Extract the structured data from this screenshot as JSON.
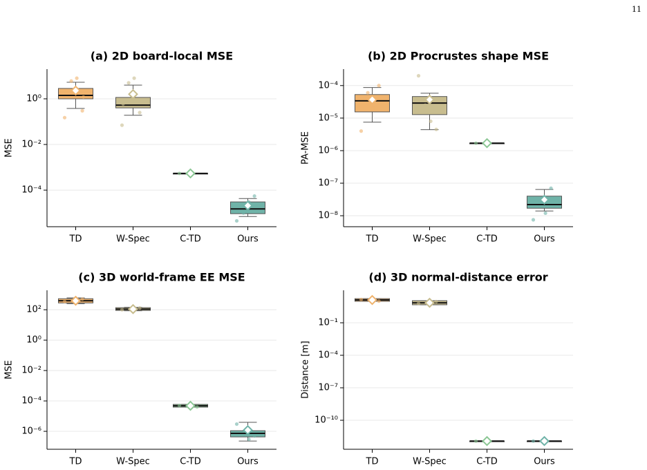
{
  "page_number": "11",
  "chart_data": [
    {
      "type": "box",
      "title": "(a) 2D board-local MSE",
      "ylabel": "MSE",
      "log": true,
      "grid": true,
      "categories": [
        "TD",
        "W-Spec",
        "C-TD",
        "Ours"
      ],
      "colors": [
        "#f0b36d",
        "#c8bd8f",
        "#8cc795",
        "#6fb3a8"
      ],
      "ylim": [
        2.5e-06,
        20
      ],
      "yticks": [
        {
          "value": 1,
          "label": "10⁰"
        },
        {
          "value": 0.01,
          "label": "10⁻²"
        },
        {
          "value": 0.0001,
          "label": "10⁻⁴"
        }
      ],
      "boxes": [
        {
          "low": 0.38,
          "q1": 1.0,
          "median": 1.42,
          "q3": 2.85,
          "high": 5.3,
          "mean": 2.3,
          "points": [
            0.15,
            0.3,
            8,
            6,
            2,
            1.2
          ]
        },
        {
          "low": 0.19,
          "q1": 0.4,
          "median": 0.53,
          "q3": 1.15,
          "high": 4.0,
          "mean": 1.6,
          "points": [
            0.07,
            0.25,
            8,
            5,
            0.6
          ]
        },
        {
          "low": 0.00054,
          "q1": 0.00054,
          "median": 0.00054,
          "q3": 0.00054,
          "high": 0.00054,
          "mean": 0.00054,
          "points": [
            0.00054
          ]
        },
        {
          "low": 7e-06,
          "q1": 9.3e-06,
          "median": 1.5e-05,
          "q3": 3.05e-05,
          "high": 4.3e-05,
          "mean": 2.1e-05,
          "points": [
            4.5e-06,
            5.5e-05,
            3e-05,
            1e-05
          ]
        }
      ]
    },
    {
      "type": "box",
      "title": "(b) 2D Procrustes shape MSE",
      "ylabel": "PA-MSE",
      "log": true,
      "grid": true,
      "categories": [
        "TD",
        "W-Spec",
        "C-TD",
        "Ours"
      ],
      "colors": [
        "#f0b36d",
        "#c8bd8f",
        "#8cc795",
        "#6fb3a8"
      ],
      "ylim": [
        4.6e-09,
        0.00032
      ],
      "yticks": [
        {
          "value": 0.0001,
          "label": "10⁻⁴"
        },
        {
          "value": 1e-05,
          "label": "10⁻⁵"
        },
        {
          "value": 1e-06,
          "label": "10⁻⁶"
        },
        {
          "value": 1e-07,
          "label": "10⁻⁷"
        },
        {
          "value": 1e-08,
          "label": "10⁻⁸"
        }
      ],
      "boxes": [
        {
          "low": 7.5e-06,
          "q1": 1.55e-05,
          "median": 3.4e-05,
          "q3": 5.3e-05,
          "high": 8.7e-05,
          "mean": 3.7e-05,
          "points": [
            4e-06,
            0.0001,
            2e-05,
            6e-05
          ]
        },
        {
          "low": 4.4e-06,
          "q1": 1.28e-05,
          "median": 2.9e-05,
          "q3": 4.6e-05,
          "high": 5.8e-05,
          "mean": 3.7e-05,
          "points": [
            0.0002,
            4.5e-06,
            8e-06,
            2.5e-05
          ]
        },
        {
          "low": 1.7e-06,
          "q1": 1.7e-06,
          "median": 1.7e-06,
          "q3": 1.7e-06,
          "high": 1.7e-06,
          "mean": 1.7e-06,
          "points": [
            1.7e-06
          ]
        },
        {
          "low": 1.4e-08,
          "q1": 1.7e-08,
          "median": 2.2e-08,
          "q3": 4e-08,
          "high": 6.4e-08,
          "mean": 3.1e-08,
          "points": [
            7.5e-09,
            7e-08,
            1.2e-08
          ]
        }
      ]
    },
    {
      "type": "box",
      "title": "(c) 3D world-frame EE MSE",
      "ylabel": "MSE",
      "log": true,
      "grid": true,
      "categories": [
        "TD",
        "W-Spec",
        "C-TD",
        "Ours"
      ],
      "colors": [
        "#f0b36d",
        "#c8bd8f",
        "#8cc795",
        "#6fb3a8"
      ],
      "ylim": [
        6.6e-08,
        1900
      ],
      "yticks": [
        {
          "value": 100,
          "label": "10²"
        },
        {
          "value": 1,
          "label": "10⁰"
        },
        {
          "value": 0.01,
          "label": "10⁻²"
        },
        {
          "value": 0.0001,
          "label": "10⁻⁴"
        },
        {
          "value": 1e-06,
          "label": "10⁻⁶"
        }
      ],
      "boxes": [
        {
          "low": 250,
          "q1": 280,
          "median": 390,
          "q3": 530,
          "high": 600,
          "mean": 390,
          "points": [
            350,
            500
          ]
        },
        {
          "low": 85,
          "q1": 90,
          "median": 110,
          "q3": 137,
          "high": 145,
          "mean": 110,
          "points": [
            100,
            130
          ]
        },
        {
          "low": 3.9e-05,
          "q1": 3.9e-05,
          "median": 4.8e-05,
          "q3": 5.9e-05,
          "high": 5.9e-05,
          "mean": 4.8e-05,
          "points": [
            5e-05,
            4e-05
          ]
        },
        {
          "low": 2.3e-07,
          "q1": 4.3e-07,
          "median": 7.3e-07,
          "q3": 1.1e-06,
          "high": 3.9e-06,
          "mean": 1.2e-06,
          "points": [
            3e-06,
            5e-07,
            3e-07
          ]
        }
      ]
    },
    {
      "type": "box",
      "title": "(d) 3D normal-distance error",
      "ylabel": "Distance [m]",
      "log": true,
      "grid": true,
      "categories": [
        "TD",
        "W-Spec",
        "C-TD",
        "Ours"
      ],
      "colors": [
        "#f0b36d",
        "#c8bd8f",
        "#8cc795",
        "#6fb3a8"
      ],
      "ylim": [
        2.1e-13,
        100
      ],
      "yticks": [
        {
          "value": 0.1,
          "label": "10⁻¹"
        },
        {
          "value": 0.0001,
          "label": "10⁻⁴"
        },
        {
          "value": 1e-07,
          "label": "10⁻⁷"
        },
        {
          "value": 1e-10,
          "label": "10⁻¹⁰"
        }
      ],
      "boxes": [
        {
          "low": 9.6,
          "q1": 9.6,
          "median": 12.7,
          "q3": 17,
          "high": 17,
          "mean": 12.7,
          "points": [
            14,
            10
          ]
        },
        {
          "low": 4.6,
          "q1": 4.6,
          "median": 7,
          "q3": 11,
          "high": 11,
          "mean": 7,
          "points": [
            6,
            9
          ]
        },
        {
          "low": 1.2e-12,
          "q1": 1.2e-12,
          "median": 1.2e-12,
          "q3": 1.2e-12,
          "high": 1.2e-12,
          "mean": 1.2e-12,
          "points": [
            1.2e-12
          ]
        },
        {
          "low": 1.2e-12,
          "q1": 1.2e-12,
          "median": 1.2e-12,
          "q3": 1.2e-12,
          "high": 1.2e-12,
          "mean": 1.2e-12,
          "points": [
            1.2e-12
          ]
        }
      ]
    }
  ]
}
